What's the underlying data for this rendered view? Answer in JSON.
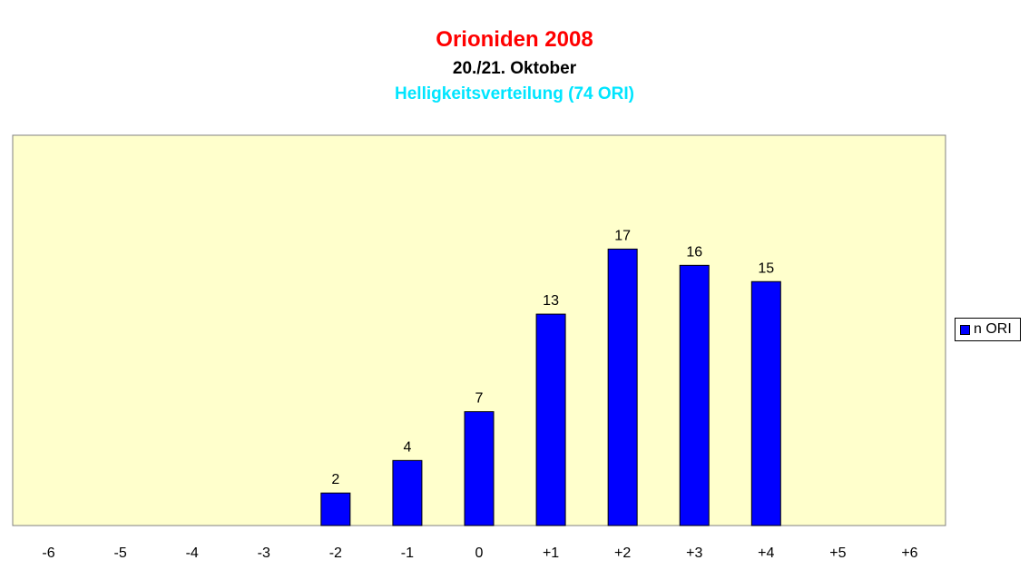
{
  "chart_data": {
    "type": "bar",
    "title": "Orioniden 2008",
    "subtitle": "20./21. Oktober",
    "subtitle2": "Helligkeitsverteilung (74 ORI)",
    "categories": [
      "-6",
      "-5",
      "-4",
      "-3",
      "-2",
      "-1",
      "0",
      "+1",
      "+2",
      "+3",
      "+4",
      "+5",
      "+6"
    ],
    "series": [
      {
        "name": "n ORI",
        "values": [
          0,
          0,
          0,
          0,
          2,
          4,
          7,
          13,
          17,
          16,
          15,
          0,
          0
        ]
      }
    ],
    "data_labels": [
      "",
      "",
      "",
      "",
      "2",
      "4",
      "7",
      "13",
      "17",
      "16",
      "15",
      "",
      ""
    ],
    "ylim": [
      0,
      24
    ],
    "grid": false,
    "legend": "right",
    "colors": {
      "plot_background": "#ffffcc",
      "bar": "#0000ff",
      "title": "#ff0000",
      "subtitle": "#000000",
      "subtitle2": "#00e5ff"
    }
  }
}
